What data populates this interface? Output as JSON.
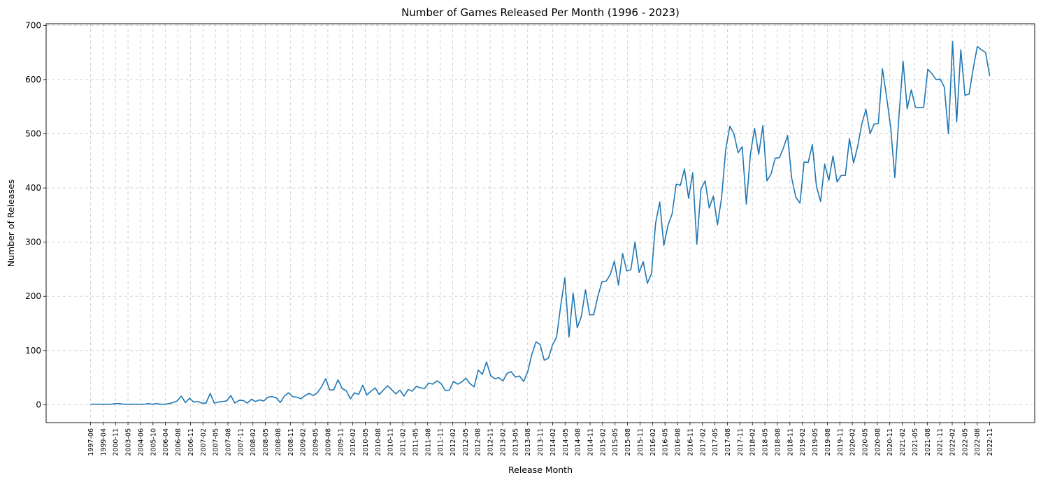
{
  "chart_data": {
    "type": "line",
    "title": "Number of Games Released Per Month (1996 - 2023)",
    "xlabel": "Release Month",
    "ylabel": "Number of Releases",
    "ylim": [
      -33,
      703
    ],
    "yticks": [
      0,
      100,
      200,
      300,
      400,
      500,
      600,
      700
    ],
    "grid": true,
    "line_color": "#1f77b4",
    "xtick_labels": [
      "1997-06",
      "1999-04",
      "2000-11",
      "2003-05",
      "2004-06",
      "2005-10",
      "2006-04",
      "2006-08",
      "2006-11",
      "2007-02",
      "2007-05",
      "2007-08",
      "2007-11",
      "2008-02",
      "2008-05",
      "2008-08",
      "2008-11",
      "2009-02",
      "2009-05",
      "2009-08",
      "2009-11",
      "2010-02",
      "2010-05",
      "2010-08",
      "2010-11",
      "2011-02",
      "2011-05",
      "2011-08",
      "2011-11",
      "2012-02",
      "2012-05",
      "2012-08",
      "2012-11",
      "2013-02",
      "2013-05",
      "2013-08",
      "2013-11",
      "2014-02",
      "2014-05",
      "2014-08",
      "2014-11",
      "2015-02",
      "2015-05",
      "2015-08",
      "2015-11",
      "2016-02",
      "2016-05",
      "2016-08",
      "2016-11",
      "2017-02",
      "2017-05",
      "2017-08",
      "2017-11",
      "2018-02",
      "2018-05",
      "2018-08",
      "2018-11",
      "2019-02",
      "2019-05",
      "2019-08",
      "2019-11",
      "2020-02",
      "2020-05",
      "2020-08",
      "2020-11",
      "2021-02",
      "2021-05",
      "2021-08",
      "2021-11",
      "2022-02",
      "2022-05",
      "2022-08",
      "2022-11"
    ],
    "values": [
      1,
      1,
      1,
      1,
      1,
      1,
      2,
      2,
      1,
      1,
      1,
      1,
      1,
      1,
      2,
      1,
      2,
      1,
      1,
      2,
      4,
      7,
      16,
      4,
      12,
      5,
      6,
      3,
      3,
      21,
      3,
      5,
      6,
      7,
      17,
      3,
      8,
      8,
      3,
      10,
      6,
      9,
      7,
      14,
      15,
      13,
      4,
      16,
      22,
      15,
      14,
      11,
      17,
      21,
      17,
      22,
      33,
      48,
      27,
      28,
      46,
      30,
      26,
      11,
      22,
      19,
      36,
      18,
      25,
      31,
      19,
      27,
      35,
      28,
      20,
      27,
      16,
      28,
      25,
      34,
      31,
      30,
      40,
      38,
      44,
      39,
      26,
      27,
      43,
      38,
      42,
      49,
      39,
      33,
      64,
      56,
      79,
      54,
      48,
      50,
      44,
      58,
      61,
      51,
      53,
      43,
      61,
      93,
      116,
      111,
      82,
      86,
      110,
      125,
      183,
      234,
      125,
      206,
      142,
      163,
      212,
      166,
      166,
      200,
      227,
      228,
      240,
      265,
      221,
      279,
      247,
      249,
      300,
      244,
      264,
      224,
      242,
      335,
      374,
      294,
      331,
      352,
      407,
      405,
      435,
      381,
      428,
      296,
      398,
      413,
      363,
      385,
      332,
      382,
      471,
      514,
      500,
      465,
      476,
      370,
      463,
      510,
      462,
      515,
      413,
      426,
      455,
      456,
      474,
      497,
      418,
      383,
      372,
      448,
      447,
      480,
      403,
      375,
      444,
      414,
      459,
      411,
      423,
      423,
      491,
      446,
      477,
      518,
      545,
      500,
      518,
      519,
      620,
      568,
      512,
      419,
      532,
      634,
      546,
      581,
      549,
      548,
      549,
      619,
      611,
      600,
      601,
      586,
      500,
      670,
      522,
      655,
      571,
      573,
      620,
      661,
      655,
      650,
      607
    ]
  }
}
